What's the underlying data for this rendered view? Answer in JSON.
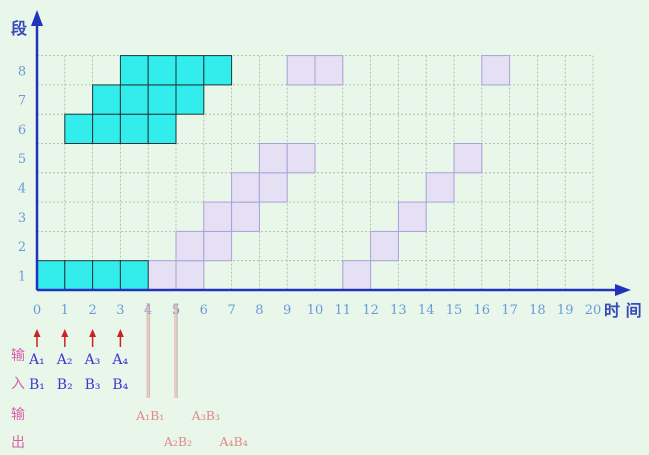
{
  "diagram": {
    "y_axis_title": "段",
    "x_axis_title": "时 间",
    "x_ticks": [
      "0",
      "1",
      "2",
      "3",
      "4",
      "5",
      "6",
      "7",
      "8",
      "9",
      "10",
      "11",
      "12",
      "13",
      "14",
      "15",
      "16",
      "17",
      "18",
      "19",
      "20"
    ],
    "y_ticks": [
      "1",
      "2",
      "3",
      "4",
      "5",
      "6",
      "7",
      "8"
    ],
    "colors": {
      "background": "#e8f7ea",
      "input_cell": "#33ecec",
      "process_cell": "#e6e0f5",
      "process_border": "#a8a2d8",
      "grid": "#9cb89c",
      "axis": "#2233bb",
      "tick_label": "#6a9bd8",
      "input_label": "#d85fa8",
      "output_text": "#e28a8a",
      "operand_text": "#3a3ad0",
      "arrow_red": "#cc2222"
    },
    "input_cells": [
      {
        "stage": 1,
        "times": [
          0,
          1,
          2,
          3
        ]
      },
      {
        "stage": 6,
        "times": [
          1,
          2,
          3,
          4
        ]
      },
      {
        "stage": 7,
        "times": [
          2,
          3,
          4,
          5
        ]
      },
      {
        "stage": 8,
        "times": [
          3,
          4,
          5,
          6
        ]
      }
    ],
    "process_cells": [
      {
        "stage": 1,
        "times": [
          4,
          5,
          11
        ]
      },
      {
        "stage": 2,
        "times": [
          5,
          6,
          12
        ]
      },
      {
        "stage": 3,
        "times": [
          6,
          7,
          13
        ]
      },
      {
        "stage": 4,
        "times": [
          7,
          8,
          14
        ]
      },
      {
        "stage": 5,
        "times": [
          8,
          9,
          15
        ]
      },
      {
        "stage": 8,
        "times": [
          9,
          10,
          16
        ]
      }
    ],
    "input_label": {
      "char1": "输",
      "char2": "入"
    },
    "output_label": {
      "char1": "输",
      "char2": "出"
    },
    "inputs": [
      {
        "a": "A₁",
        "b": "B₁",
        "time": 0
      },
      {
        "a": "A₂",
        "b": "B₂",
        "time": 1
      },
      {
        "a": "A₃",
        "b": "B₃",
        "time": 2
      },
      {
        "a": "A₄",
        "b": "B₄",
        "time": 3
      }
    ],
    "outputs": [
      {
        "text": "A₁B₁",
        "time": 4,
        "row": 0
      },
      {
        "text": "A₂B₂",
        "time": 5,
        "row": 1
      },
      {
        "text": "A₃B₃",
        "time": 6,
        "row": 0
      },
      {
        "text": "A₄B₄",
        "time": 7,
        "row": 1
      }
    ]
  }
}
